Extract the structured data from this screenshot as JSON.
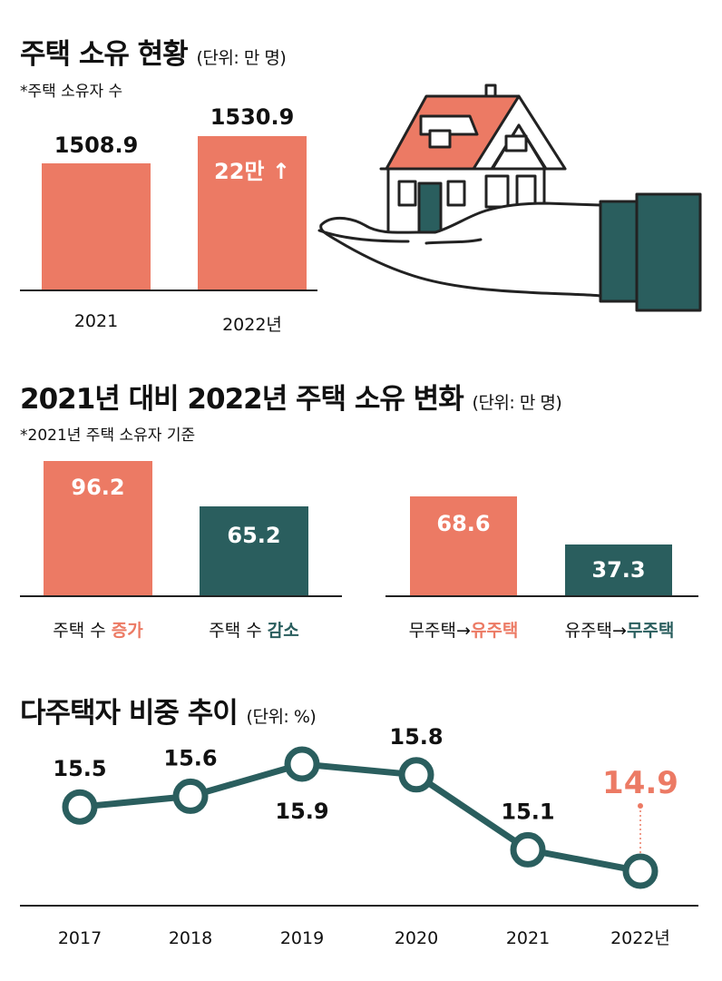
{
  "section1": {
    "title": "주택 소유 현황",
    "unit": "(단위: 만 명)",
    "note": "*주택 소유자 수",
    "change_label": "22만",
    "arrow": "↑"
  },
  "section2": {
    "title": "2021년 대비 2022년 주택 소유 변화",
    "unit": "(단위: 만 명)",
    "note": "*2021년 주택 소유자 기준",
    "labels": [
      {
        "prefix": "주택 수 ",
        "highlight": "증가"
      },
      {
        "prefix": "주택 수 ",
        "highlight": "감소"
      },
      {
        "prefix": "무주택→",
        "highlight": "유주택"
      },
      {
        "prefix": "유주택→",
        "highlight": "무주택"
      }
    ]
  },
  "section3": {
    "title": "다주택자 비중 추이",
    "unit": "(단위: %)"
  },
  "colors": {
    "salmon": "#ec7a64",
    "teal": "#2a5e5e",
    "dark": "#222222"
  },
  "chart_data": [
    {
      "type": "bar",
      "title": "주택 소유 현황",
      "categories": [
        "2021",
        "2022년"
      ],
      "values": [
        1508.9,
        1530.9
      ],
      "value_labels": [
        "1508.9",
        "1530.9"
      ],
      "ylabel": "만 명"
    },
    {
      "type": "bar",
      "title": "2021년 대비 2022년 주택 소유 변화",
      "categories": [
        "주택 수 증가",
        "주택 수 감소",
        "무주택→유주택",
        "유주택→무주택"
      ],
      "values": [
        96.2,
        65.2,
        68.6,
        37.3
      ],
      "value_labels": [
        "96.2",
        "65.2",
        "68.6",
        "37.3"
      ],
      "ylabel": "만 명"
    },
    {
      "type": "line",
      "title": "다주택자 비중 추이",
      "x": [
        "2017",
        "2018",
        "2019",
        "2020",
        "2021",
        "2022년"
      ],
      "values": [
        15.5,
        15.6,
        15.9,
        15.8,
        15.1,
        14.9
      ],
      "value_labels": [
        "15.5",
        "15.6",
        "15.9",
        "15.8",
        "15.1",
        "14.9"
      ],
      "ylabel": "%"
    }
  ]
}
